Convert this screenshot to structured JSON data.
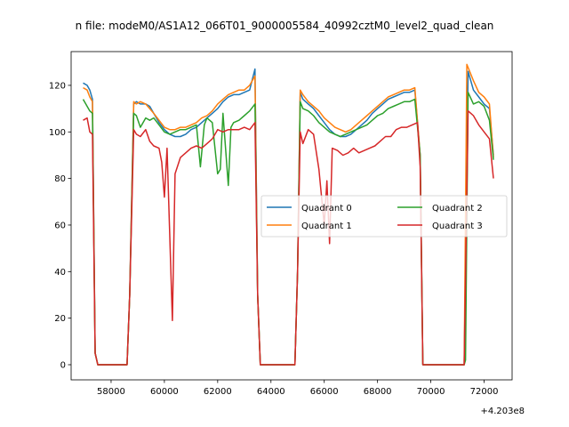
{
  "chart_data": {
    "type": "line",
    "title": "n file: modeM0/AS1A12_066T01_9000005584_40992cztM0_level2_quad_clean",
    "xlabel": "",
    "ylabel": "",
    "x_offset_label": "+4.203e8",
    "xlim": [
      56500,
      73050
    ],
    "ylim": [
      -6.5,
      134.5
    ],
    "x_ticks": [
      58000,
      60000,
      62000,
      64000,
      66000,
      68000,
      70000,
      72000
    ],
    "x_tick_labels": [
      "58000",
      "60000",
      "62000",
      "64000",
      "66000",
      "68000",
      "70000",
      "72000"
    ],
    "y_ticks": [
      0,
      20,
      40,
      60,
      80,
      100,
      120
    ],
    "y_tick_labels": [
      "0",
      "20",
      "40",
      "60",
      "80",
      "100",
      "120"
    ],
    "grid": false,
    "legend": {
      "placement": "center-right",
      "columns": 2
    },
    "series": [
      {
        "name": "Quadrant 0",
        "color": "#1f77b4",
        "points": [
          [
            56950,
            121
          ],
          [
            57100,
            120
          ],
          [
            57200,
            118
          ],
          [
            57300,
            114
          ],
          [
            57400,
            5
          ],
          [
            57500,
            0
          ],
          [
            58000,
            0
          ],
          [
            58600,
            0
          ],
          [
            58700,
            30
          ],
          [
            58850,
            112
          ],
          [
            58950,
            113
          ],
          [
            59100,
            112
          ],
          [
            59300,
            112
          ],
          [
            59450,
            111
          ],
          [
            59600,
            108
          ],
          [
            59800,
            104
          ],
          [
            60000,
            101
          ],
          [
            60200,
            99
          ],
          [
            60400,
            98
          ],
          [
            60600,
            98
          ],
          [
            60800,
            99
          ],
          [
            61000,
            101
          ],
          [
            61200,
            102
          ],
          [
            61400,
            104
          ],
          [
            61600,
            106
          ],
          [
            61800,
            108
          ],
          [
            62000,
            110
          ],
          [
            62200,
            113
          ],
          [
            62400,
            115
          ],
          [
            62600,
            116
          ],
          [
            62800,
            116
          ],
          [
            63000,
            117
          ],
          [
            63200,
            118
          ],
          [
            63400,
            127
          ],
          [
            63500,
            30
          ],
          [
            63600,
            0
          ],
          [
            64000,
            0
          ],
          [
            64900,
            0
          ],
          [
            65000,
            40
          ],
          [
            65100,
            117
          ],
          [
            65200,
            114
          ],
          [
            65400,
            112
          ],
          [
            65600,
            110
          ],
          [
            65800,
            107
          ],
          [
            66000,
            104
          ],
          [
            66200,
            101
          ],
          [
            66400,
            99
          ],
          [
            66600,
            98
          ],
          [
            66800,
            98
          ],
          [
            67000,
            99
          ],
          [
            67200,
            101
          ],
          [
            67400,
            103
          ],
          [
            67600,
            105
          ],
          [
            67800,
            108
          ],
          [
            68000,
            110
          ],
          [
            68200,
            112
          ],
          [
            68400,
            114
          ],
          [
            68600,
            115
          ],
          [
            68800,
            116
          ],
          [
            69000,
            117
          ],
          [
            69200,
            117
          ],
          [
            69400,
            118
          ],
          [
            69600,
            90
          ],
          [
            69700,
            0
          ],
          [
            70000,
            0
          ],
          [
            71250,
            0
          ],
          [
            71400,
            126
          ],
          [
            71600,
            118
          ],
          [
            71800,
            115
          ],
          [
            72000,
            112
          ],
          [
            72200,
            110
          ],
          [
            72350,
            90
          ]
        ]
      },
      {
        "name": "Quadrant 1",
        "color": "#ff7f0e",
        "points": [
          [
            56950,
            119
          ],
          [
            57100,
            118
          ],
          [
            57200,
            115
          ],
          [
            57300,
            113
          ],
          [
            57400,
            5
          ],
          [
            57500,
            0
          ],
          [
            58000,
            0
          ],
          [
            58600,
            0
          ],
          [
            58700,
            30
          ],
          [
            58850,
            113
          ],
          [
            58950,
            112
          ],
          [
            59100,
            113
          ],
          [
            59300,
            112
          ],
          [
            59450,
            110
          ],
          [
            59600,
            108
          ],
          [
            59800,
            105
          ],
          [
            60000,
            102
          ],
          [
            60200,
            101
          ],
          [
            60400,
            101
          ],
          [
            60600,
            102
          ],
          [
            60800,
            102
          ],
          [
            61000,
            103
          ],
          [
            61200,
            104
          ],
          [
            61400,
            106
          ],
          [
            61600,
            107
          ],
          [
            61800,
            109
          ],
          [
            62000,
            112
          ],
          [
            62200,
            114
          ],
          [
            62400,
            116
          ],
          [
            62600,
            117
          ],
          [
            62800,
            118
          ],
          [
            63000,
            118
          ],
          [
            63200,
            120
          ],
          [
            63400,
            124
          ],
          [
            63500,
            30
          ],
          [
            63600,
            0
          ],
          [
            64000,
            0
          ],
          [
            64900,
            0
          ],
          [
            65000,
            40
          ],
          [
            65100,
            118
          ],
          [
            65200,
            116
          ],
          [
            65400,
            113
          ],
          [
            65600,
            111
          ],
          [
            65800,
            109
          ],
          [
            66000,
            106
          ],
          [
            66200,
            104
          ],
          [
            66400,
            102
          ],
          [
            66600,
            101
          ],
          [
            66800,
            100
          ],
          [
            67000,
            101
          ],
          [
            67200,
            103
          ],
          [
            67400,
            105
          ],
          [
            67600,
            107
          ],
          [
            67800,
            109
          ],
          [
            68000,
            111
          ],
          [
            68200,
            113
          ],
          [
            68400,
            115
          ],
          [
            68600,
            116
          ],
          [
            68800,
            117
          ],
          [
            69000,
            118
          ],
          [
            69200,
            118
          ],
          [
            69400,
            119
          ],
          [
            69600,
            90
          ],
          [
            69700,
            0
          ],
          [
            70000,
            0
          ],
          [
            71250,
            0
          ],
          [
            71350,
            129
          ],
          [
            71600,
            122
          ],
          [
            71800,
            117
          ],
          [
            72000,
            115
          ],
          [
            72200,
            112
          ],
          [
            72350,
            89
          ]
        ]
      },
      {
        "name": "Quadrant 2",
        "color": "#2ca02c",
        "points": [
          [
            56950,
            114
          ],
          [
            57100,
            111
          ],
          [
            57200,
            109
          ],
          [
            57300,
            108
          ],
          [
            57400,
            5
          ],
          [
            57500,
            0
          ],
          [
            58000,
            0
          ],
          [
            58600,
            0
          ],
          [
            58700,
            30
          ],
          [
            58850,
            108
          ],
          [
            58950,
            107
          ],
          [
            59100,
            102
          ],
          [
            59300,
            106
          ],
          [
            59450,
            105
          ],
          [
            59600,
            106
          ],
          [
            59800,
            103
          ],
          [
            60000,
            100
          ],
          [
            60200,
            99
          ],
          [
            60400,
            100
          ],
          [
            60600,
            101
          ],
          [
            60800,
            101
          ],
          [
            61000,
            102
          ],
          [
            61200,
            103
          ],
          [
            61350,
            85
          ],
          [
            61500,
            103
          ],
          [
            61600,
            106
          ],
          [
            61800,
            104
          ],
          [
            62000,
            82
          ],
          [
            62100,
            84
          ],
          [
            62200,
            108
          ],
          [
            62400,
            77
          ],
          [
            62500,
            102
          ],
          [
            62600,
            104
          ],
          [
            62800,
            105
          ],
          [
            63000,
            107
          ],
          [
            63200,
            109
          ],
          [
            63400,
            112
          ],
          [
            63500,
            30
          ],
          [
            63600,
            0
          ],
          [
            64000,
            0
          ],
          [
            64900,
            0
          ],
          [
            65000,
            40
          ],
          [
            65100,
            113
          ],
          [
            65200,
            110
          ],
          [
            65400,
            109
          ],
          [
            65600,
            107
          ],
          [
            65800,
            104
          ],
          [
            66000,
            102
          ],
          [
            66200,
            100
          ],
          [
            66400,
            99
          ],
          [
            66600,
            98
          ],
          [
            66800,
            99
          ],
          [
            67000,
            100
          ],
          [
            67200,
            101
          ],
          [
            67400,
            102
          ],
          [
            67600,
            103
          ],
          [
            67800,
            105
          ],
          [
            68000,
            107
          ],
          [
            68200,
            108
          ],
          [
            68400,
            110
          ],
          [
            68600,
            111
          ],
          [
            68800,
            112
          ],
          [
            69000,
            113
          ],
          [
            69200,
            113
          ],
          [
            69400,
            114
          ],
          [
            69600,
            90
          ],
          [
            69700,
            0
          ],
          [
            70000,
            0
          ],
          [
            71250,
            0
          ],
          [
            71300,
            2
          ],
          [
            71400,
            117
          ],
          [
            71600,
            112
          ],
          [
            71800,
            113
          ],
          [
            72000,
            111
          ],
          [
            72200,
            105
          ],
          [
            72350,
            88
          ]
        ]
      },
      {
        "name": "Quadrant 3",
        "color": "#d62728",
        "points": [
          [
            56950,
            105
          ],
          [
            57100,
            106
          ],
          [
            57200,
            100
          ],
          [
            57300,
            99
          ],
          [
            57400,
            5
          ],
          [
            57500,
            0
          ],
          [
            58000,
            0
          ],
          [
            58600,
            0
          ],
          [
            58700,
            30
          ],
          [
            58850,
            101
          ],
          [
            58950,
            99
          ],
          [
            59100,
            98
          ],
          [
            59300,
            101
          ],
          [
            59450,
            96
          ],
          [
            59600,
            94
          ],
          [
            59800,
            93
          ],
          [
            59900,
            87
          ],
          [
            60000,
            72
          ],
          [
            60100,
            93
          ],
          [
            60300,
            19
          ],
          [
            60400,
            82
          ],
          [
            60600,
            89
          ],
          [
            60800,
            91
          ],
          [
            61000,
            93
          ],
          [
            61200,
            94
          ],
          [
            61400,
            93
          ],
          [
            61600,
            95
          ],
          [
            61800,
            97
          ],
          [
            62000,
            101
          ],
          [
            62200,
            100
          ],
          [
            62400,
            101
          ],
          [
            62600,
            101
          ],
          [
            62800,
            101
          ],
          [
            63000,
            102
          ],
          [
            63200,
            101
          ],
          [
            63400,
            104
          ],
          [
            63500,
            30
          ],
          [
            63600,
            0
          ],
          [
            64000,
            0
          ],
          [
            64900,
            0
          ],
          [
            65000,
            40
          ],
          [
            65100,
            100
          ],
          [
            65200,
            95
          ],
          [
            65400,
            101
          ],
          [
            65600,
            99
          ],
          [
            65800,
            84
          ],
          [
            66000,
            60
          ],
          [
            66100,
            79
          ],
          [
            66200,
            52
          ],
          [
            66300,
            93
          ],
          [
            66500,
            92
          ],
          [
            66700,
            90
          ],
          [
            66900,
            91
          ],
          [
            67100,
            93
          ],
          [
            67300,
            91
          ],
          [
            67500,
            92
          ],
          [
            67700,
            93
          ],
          [
            67900,
            94
          ],
          [
            68100,
            96
          ],
          [
            68300,
            98
          ],
          [
            68500,
            98
          ],
          [
            68700,
            101
          ],
          [
            68900,
            102
          ],
          [
            69100,
            102
          ],
          [
            69300,
            103
          ],
          [
            69500,
            104
          ],
          [
            69600,
            85
          ],
          [
            69700,
            0
          ],
          [
            70000,
            0
          ],
          [
            71250,
            0
          ],
          [
            71400,
            109
          ],
          [
            71600,
            107
          ],
          [
            71800,
            103
          ],
          [
            72000,
            100
          ],
          [
            72200,
            97
          ],
          [
            72350,
            80
          ]
        ]
      }
    ]
  }
}
